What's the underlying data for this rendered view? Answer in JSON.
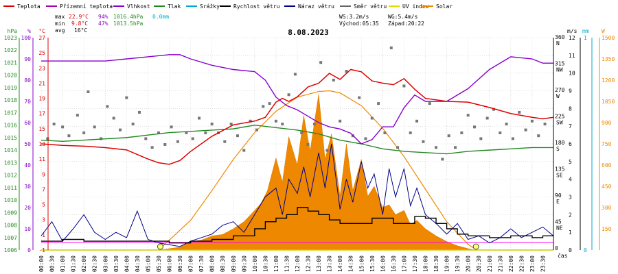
{
  "chart_data": {
    "type": "line",
    "title": "8.08.2023",
    "xlabel": "čas",
    "legend": [
      {
        "label": "Teplota",
        "color": "#dd0000"
      },
      {
        "label": "Přízemní teplota",
        "color": "#aa00aa"
      },
      {
        "label": "Vlhkost",
        "color": "#8800cc"
      },
      {
        "label": "Tlak",
        "color": "#228822"
      },
      {
        "label": "Srážky",
        "color": "#00aacc"
      },
      {
        "label": "Rychlost větru",
        "color": "#000000"
      },
      {
        "label": "Náraz větru",
        "color": "#000088"
      },
      {
        "label": "Směr větru",
        "color": "#666666"
      },
      {
        "label": "UV index",
        "color": "#dddd00"
      },
      {
        "label": "Solar",
        "color": "#ee8800"
      }
    ],
    "stats": {
      "max": {
        "label": "max",
        "temp": "22.9°C",
        "hum": "94%",
        "press": "1016.4hPa",
        "rain": "0.0mm"
      },
      "min": {
        "label": "min",
        "temp": "9.8°C",
        "hum": "47%",
        "press": "1013.5hPa"
      },
      "avg": {
        "label": "avg",
        "temp": "16°C"
      }
    },
    "wind_info": {
      "ws": "WS:3.2m/s",
      "wg": "WG:5.4m/s",
      "sunrise": "Východ:05:35",
      "sunset": "Západ:20:22"
    },
    "axes": {
      "hpa": {
        "unit": "hPa",
        "ticks": [
          "1023",
          "1022",
          "1021",
          "1020",
          "1019",
          "1018",
          "1017",
          "1016",
          "1015",
          "1014",
          "1013",
          "1012",
          "1011",
          "1010",
          "1009",
          "1008",
          "1007",
          "1006"
        ],
        "range": [
          1006,
          1023
        ]
      },
      "pct": {
        "unit": "%",
        "ticks": [
          "100",
          "90",
          "80",
          "70",
          "60",
          "50",
          "40",
          "30",
          "20",
          "10",
          "0"
        ],
        "range": [
          0,
          100
        ]
      },
      "celsius": {
        "unit": "°C",
        "ticks": [
          "27",
          "25",
          "23",
          "21",
          "19",
          "17",
          "15",
          "13",
          "11",
          "9",
          "7",
          "5",
          "3",
          "1",
          "-1"
        ],
        "range": [
          -1,
          27
        ]
      },
      "dir": {
        "unit": "",
        "ticks": [
          "360 N",
          "315 NW",
          "270 W",
          "225 SW",
          "180 S",
          "135 SE",
          "90 E",
          "45 NE",
          "0"
        ]
      },
      "ms": {
        "unit": "m/s",
        "ticks": [
          "12",
          "11",
          "10",
          "9",
          "8",
          "7",
          "6",
          "5",
          "4",
          "3",
          "2",
          "1",
          "0"
        ],
        "range": [
          0,
          12
        ]
      },
      "mm": {
        "unit": "mm",
        "ticks": [
          "1",
          "0"
        ],
        "range": [
          0,
          1
        ]
      },
      "w": {
        "unit": "W",
        "ticks": [
          "1500",
          "1350",
          "1200",
          "1050",
          "900",
          "750",
          "600",
          "450",
          "300",
          "150"
        ],
        "range": [
          0,
          1500
        ]
      }
    },
    "x_ticks": [
      "00:00",
      "00:30",
      "01:00",
      "01:30",
      "02:00",
      "02:30",
      "03:00",
      "03:30",
      "04:00",
      "04:30",
      "05:00",
      "05:30",
      "06:00",
      "06:30",
      "07:00",
      "07:30",
      "08:00",
      "08:30",
      "09:00",
      "09:30",
      "10:00",
      "10:30",
      "11:00",
      "11:30",
      "12:00",
      "12:30",
      "13:00",
      "13:30",
      "14:00",
      "14:30",
      "15:00",
      "15:30",
      "16:00",
      "16:30",
      "17:00",
      "17:30",
      "18:00",
      "18:30",
      "19:00",
      "19:30",
      "20:00",
      "20:30",
      "21:00",
      "21:30",
      "22:00",
      "22:30",
      "23:00",
      "23:30"
    ],
    "series": {
      "teplota": {
        "x": [
          0,
          1,
          2,
          3,
          4,
          5,
          5.5,
          6,
          6.5,
          7,
          8,
          9,
          10,
          10.5,
          11,
          11.3,
          11.6,
          12,
          12.5,
          13,
          13.5,
          14,
          14.5,
          15,
          15.5,
          16,
          16.5,
          17,
          17.5,
          18,
          19,
          20,
          21,
          22,
          23,
          23.5,
          24
        ],
        "y": [
          13.0,
          12.8,
          12.7,
          12.5,
          12.2,
          11.0,
          10.5,
          10.3,
          10.8,
          12.0,
          14.0,
          15.5,
          16.0,
          16.5,
          18.5,
          19.0,
          18.6,
          19.2,
          20.5,
          21.0,
          22.3,
          21.5,
          22.8,
          22.5,
          21.3,
          21.0,
          20.8,
          21.6,
          20.2,
          19.0,
          18.6,
          18.5,
          17.8,
          17.0,
          16.5,
          16.3,
          16.5
        ]
      },
      "vlhkost": {
        "x": [
          0,
          1,
          2,
          3,
          4,
          5,
          6,
          6.5,
          7,
          8,
          9,
          10,
          10.5,
          11,
          11.5,
          12,
          12.5,
          13,
          13.5,
          14,
          14.5,
          15,
          15.5,
          16,
          16.5,
          17,
          17.5,
          18,
          19,
          20,
          21,
          22,
          23,
          23.5,
          24
        ],
        "y": [
          89,
          89,
          89,
          89,
          90,
          91,
          92,
          92,
          90,
          87,
          85,
          84,
          80,
          72,
          68,
          66,
          63,
          60,
          58,
          57,
          55,
          50,
          52,
          58,
          58,
          67,
          73,
          70,
          70,
          76,
          85,
          91,
          90,
          88,
          88
        ]
      },
      "tlak": {
        "x": [
          0,
          1,
          2,
          3,
          4,
          5,
          6,
          7,
          8,
          9,
          10,
          11,
          12,
          13,
          14,
          15,
          16,
          17,
          18,
          19,
          20,
          21,
          22,
          23,
          24
        ],
        "y": [
          1014.8,
          1014.7,
          1014.8,
          1014.9,
          1015.0,
          1015.2,
          1015.4,
          1015.5,
          1015.6,
          1015.7,
          1016.0,
          1015.8,
          1015.6,
          1015.3,
          1014.8,
          1014.5,
          1014.1,
          1013.9,
          1013.8,
          1013.7,
          1013.9,
          1014.0,
          1014.1,
          1014.2,
          1014.2
        ]
      },
      "rychlost": {
        "x": [
          0,
          1,
          2,
          3,
          4,
          5,
          6,
          7,
          8,
          9,
          10,
          10.5,
          11,
          11.5,
          12,
          12.5,
          13,
          13.5,
          14,
          14.5,
          15,
          15.5,
          16,
          16.5,
          17,
          17.5,
          18,
          18.5,
          19,
          19.5,
          20,
          21,
          22,
          23,
          23.5,
          24
        ],
        "y": [
          0.5,
          0.6,
          0.5,
          0.5,
          0.5,
          0.5,
          0.4,
          0.5,
          0.6,
          0.8,
          1.2,
          1.6,
          1.8,
          2.0,
          2.4,
          2.2,
          2.0,
          1.7,
          1.5,
          1.5,
          1.5,
          1.8,
          1.8,
          1.5,
          1.5,
          1.9,
          1.8,
          1.5,
          1.2,
          0.9,
          0.8,
          0.7,
          0.8,
          0.7,
          0.8,
          0.8
        ]
      },
      "naraz": {
        "x": [
          0,
          0.5,
          1,
          1.5,
          2,
          2.5,
          3,
          3.5,
          4,
          4.5,
          5,
          5.5,
          6,
          6.5,
          7,
          7.5,
          8,
          8.5,
          9,
          9.5,
          10,
          10.5,
          11,
          11.3,
          11.6,
          12,
          12.3,
          12.6,
          13,
          13.3,
          13.6,
          14,
          14.3,
          14.6,
          15,
          15.3,
          15.6,
          16,
          16.3,
          16.6,
          17,
          17.3,
          17.6,
          18,
          18.5,
          19,
          19.5,
          20,
          20.5,
          21,
          21.5,
          22,
          22.5,
          23,
          23.5,
          24
        ],
        "y": [
          0.8,
          1.6,
          0.5,
          1.2,
          2.0,
          1.0,
          0.6,
          1.0,
          0.7,
          2.2,
          0.6,
          0.4,
          0.3,
          0.2,
          0.5,
          0.7,
          0.9,
          1.4,
          1.6,
          1.0,
          2.0,
          3.0,
          3.5,
          2.0,
          4.0,
          3.2,
          4.7,
          3.0,
          5.5,
          3.5,
          6.0,
          2.3,
          4.0,
          2.7,
          5.0,
          3.5,
          4.3,
          2.0,
          4.6,
          3.0,
          4.6,
          2.5,
          3.5,
          2.0,
          1.5,
          0.9,
          1.5,
          0.6,
          0.8,
          0.4,
          0.7,
          1.2,
          0.7,
          1.0,
          1.3,
          0.8
        ]
      },
      "smer": {
        "x": [
          0.3,
          0.6,
          1.0,
          1.3,
          1.7,
          2.0,
          2.2,
          2.5,
          2.8,
          3.1,
          3.4,
          3.7,
          4.0,
          4.3,
          4.6,
          4.9,
          5.2,
          5.5,
          5.8,
          6.1,
          6.4,
          6.8,
          7.1,
          7.4,
          7.7,
          8.0,
          8.3,
          8.6,
          8.9,
          9.2,
          9.5,
          9.8,
          10.1,
          10.4,
          10.7,
          11.0,
          11.3,
          11.6,
          11.9,
          12.2,
          12.5,
          12.8,
          13.1,
          13.4,
          13.7,
          14.0,
          14.3,
          14.6,
          14.9,
          15.2,
          15.5,
          15.8,
          16.1,
          16.4,
          16.7,
          17.0,
          17.3,
          17.6,
          17.9,
          18.2,
          18.5,
          18.8,
          19.1,
          19.4,
          19.7,
          20.0,
          20.3,
          20.6,
          20.9,
          21.2,
          21.5,
          21.8,
          22.1,
          22.4,
          22.7,
          23.0,
          23.3,
          23.6
        ],
        "y": [
          190,
          215,
          210,
          195,
          230,
          200,
          270,
          210,
          190,
          245,
          225,
          205,
          260,
          215,
          235,
          190,
          175,
          200,
          180,
          210,
          185,
          200,
          190,
          225,
          200,
          215,
          200,
          185,
          215,
          195,
          170,
          220,
          205,
          245,
          250,
          220,
          215,
          265,
          300,
          200,
          180,
          215,
          320,
          170,
          290,
          220,
          305,
          195,
          260,
          190,
          225,
          250,
          200,
          345,
          175,
          280,
          200,
          220,
          185,
          250,
          175,
          155,
          195,
          175,
          200,
          230,
          210,
          190,
          225,
          240,
          200,
          215,
          190,
          235,
          205,
          220,
          195,
          215
        ]
      },
      "solar": {
        "x": [
          0,
          5.5,
          6.5,
          7,
          7.5,
          8,
          8.5,
          9,
          9.5,
          10,
          10.3,
          10.6,
          11,
          11.3,
          11.6,
          12,
          12.3,
          12.6,
          13,
          13.3,
          13.6,
          14,
          14.3,
          14.6,
          15,
          15.3,
          15.6,
          16,
          16.3,
          16.6,
          17,
          17.3,
          17.6,
          18,
          18.5,
          19,
          19.5,
          20,
          20.3,
          24
        ],
        "y": [
          0,
          0,
          20,
          60,
          70,
          100,
          110,
          150,
          200,
          280,
          330,
          420,
          650,
          480,
          800,
          600,
          950,
          700,
          1100,
          640,
          820,
          380,
          750,
          420,
          640,
          380,
          450,
          300,
          320,
          250,
          280,
          180,
          210,
          150,
          100,
          60,
          30,
          10,
          0,
          0
        ]
      },
      "solar_curve": {
        "x": [
          5.5,
          7,
          8,
          9,
          10,
          11,
          12,
          13,
          13.5,
          14,
          15,
          16,
          17,
          18,
          19,
          20,
          20.4
        ],
        "y": [
          0,
          210,
          420,
          640,
          830,
          980,
          1080,
          1120,
          1125,
          1110,
          1020,
          860,
          660,
          430,
          200,
          40,
          0
        ]
      }
    },
    "colors": {
      "grid": "#cccccc",
      "bg": "#ffffff",
      "zero_line": "#ff00ff",
      "baseline": "#cccc00"
    }
  }
}
